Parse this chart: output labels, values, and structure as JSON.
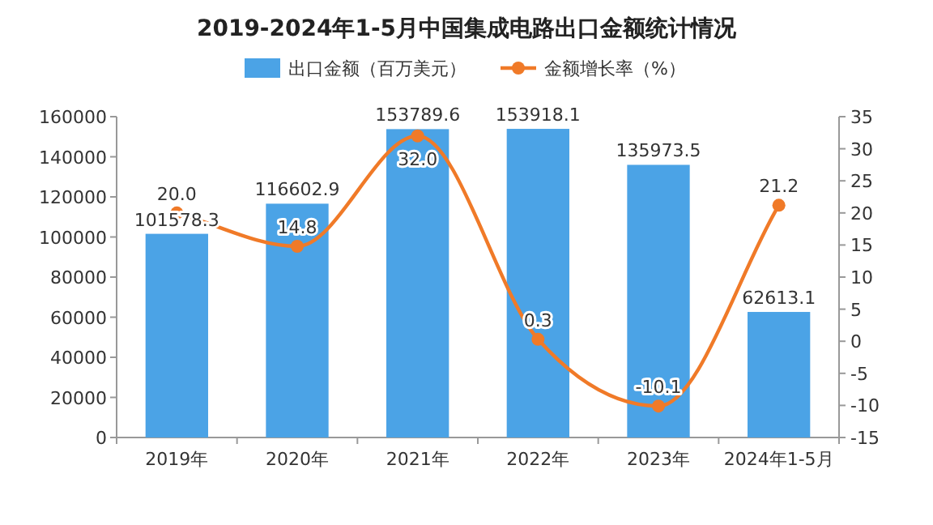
{
  "chart_data": {
    "type": "bar",
    "title": "2019-2024年1-5月中国集成电路出口金额统计情况",
    "categories": [
      "2019年",
      "2020年",
      "2021年",
      "2022年",
      "2023年",
      "2024年1-5月"
    ],
    "series": [
      {
        "name": "出口金额（百万美元）",
        "type": "bar",
        "color": "#4ba3e6",
        "values": [
          101578.3,
          116602.9,
          153789.6,
          153918.1,
          135973.5,
          62613.1
        ],
        "value_labels": [
          "101578.3",
          "116602.9",
          "153789.6",
          "153918.1",
          "135973.5",
          "62613.1"
        ]
      },
      {
        "name": "金额增长率（%）",
        "type": "line",
        "axis": "y2",
        "color": "#f07a28",
        "marker": "circle",
        "values": [
          20.0,
          14.8,
          32.0,
          0.3,
          -10.1,
          21.2
        ],
        "value_labels": [
          "20.0",
          "14.8",
          "32.0",
          "0.3",
          "-10.1",
          "21.2"
        ]
      }
    ],
    "ylim": [
      0,
      160000
    ],
    "yticks": [
      0,
      20000,
      40000,
      60000,
      80000,
      100000,
      120000,
      140000,
      160000
    ],
    "y2lim": [
      -15,
      35
    ],
    "y2ticks": [
      -15,
      -10,
      -5,
      0,
      5,
      10,
      15,
      20,
      25,
      30,
      35
    ],
    "legend": "top"
  }
}
